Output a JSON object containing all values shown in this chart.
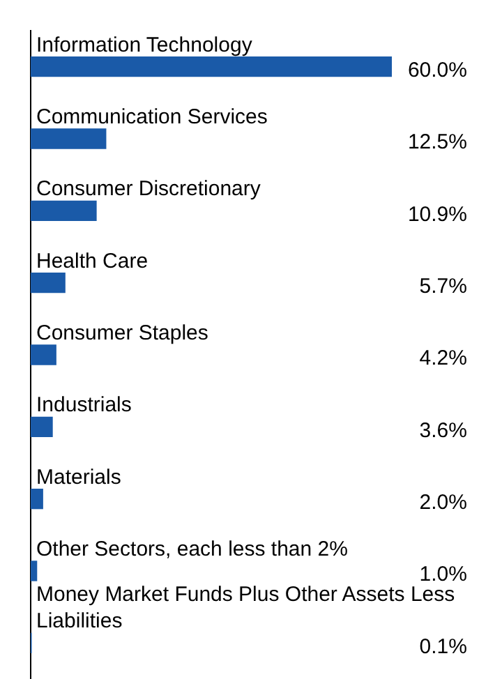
{
  "chart_data": {
    "type": "bar",
    "orientation": "horizontal",
    "categories": [
      "Information Technology",
      "Communication Services",
      "Consumer Discretionary",
      "Health Care",
      "Consumer Staples",
      "Industrials",
      "Materials",
      "Other Sectors, each less than 2%",
      "Money Market Funds Plus Other Assets Less Liabilities"
    ],
    "values": [
      60.0,
      12.5,
      10.9,
      5.7,
      4.2,
      3.6,
      2.0,
      1.0,
      0.1
    ],
    "value_labels": [
      "60.0%",
      "12.5%",
      "10.9%",
      "5.7%",
      "4.2%",
      "3.6%",
      "2.0%",
      "1.0%",
      "0.1%"
    ],
    "color": "#1a5aa8",
    "legend": false,
    "grid": false
  }
}
